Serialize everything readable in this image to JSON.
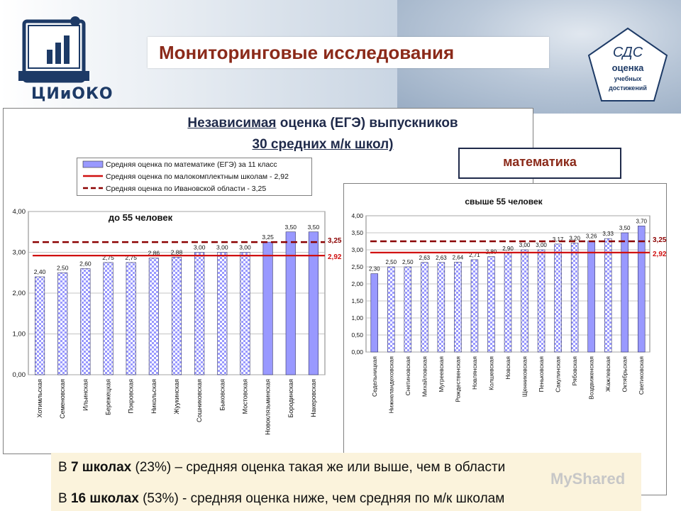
{
  "header": {
    "title": "Мониторинговые исследования",
    "logo_left_text": "ЦИиОКО",
    "logo_right": {
      "line1": "СДС",
      "line2": "оценка",
      "line3": "учебных",
      "line4": "достижений"
    }
  },
  "subtitle": {
    "line1_part1": "Независимая",
    "line1_part2": " оценка (ЕГЭ) выпускников",
    "line2": "30 средних м/к школ)"
  },
  "subject": "математика",
  "legend": {
    "item1": "Средняя оценка по математике (ЕГЭ) за 11 класс",
    "item2": "Средняя оценка по малокомплектным школам - 2,92",
    "item3": "Средняя оценка по Ивановской области - 3,25"
  },
  "bottom": {
    "line1_pre": "В ",
    "line1_bold": "7 школах",
    "line1_post": " (23%) – средняя оценка такая же или выше, чем в области",
    "line2_pre": "В ",
    "line2_bold": "16 школах",
    "line2_post": " (53%) - средняя оценка ниже, чем средняя по м/к школам"
  },
  "watermark": "MyShared",
  "colors": {
    "title": "#8b2a1a",
    "bar_fill": "#9999ff",
    "line_mk": "#d01010",
    "line_region": "#8b0000"
  },
  "chart_data": [
    {
      "type": "bar",
      "title": "до 55 человек",
      "categories": [
        "Хотимльская",
        "Семеновская",
        "Ильинская",
        "Бережецкая",
        "Покровская",
        "Никольская",
        "Жуукинская",
        "Сошниковская",
        "Быковская",
        "Мостовская",
        "Новоклязьминская",
        "Бородинская",
        "Накеровская"
      ],
      "values": [
        2.4,
        2.5,
        2.6,
        2.75,
        2.75,
        2.86,
        2.88,
        3.0,
        3.0,
        3.0,
        3.25,
        3.5,
        3.5
      ],
      "value_labels": [
        "2,40",
        "2,50",
        "2,60",
        "2,75",
        "2,75",
        "2,86",
        "2,88",
        "3,00",
        "3,00",
        "3,00",
        "3,25",
        "3,50",
        "3,50"
      ],
      "patterned": [
        true,
        true,
        true,
        true,
        true,
        true,
        true,
        true,
        true,
        true,
        false,
        false,
        false
      ],
      "ylim": [
        0,
        4
      ],
      "yticks": [
        "0,00",
        "1,00",
        "2,00",
        "3,00",
        "4,00"
      ],
      "ref_lines": [
        {
          "value": 3.25,
          "label": "3,25",
          "style": "dashed"
        },
        {
          "value": 2.92,
          "label": "2,92",
          "style": "solid"
        }
      ]
    },
    {
      "type": "bar",
      "title": "свыше 55 человек",
      "categories": [
        "Седельницкая",
        "Нижнеландеховская",
        "Снетиновская",
        "Михайловская",
        "Мугреевская",
        "Рождественская",
        "Новлянская",
        "Колшевская",
        "Новская",
        "Щенниковская",
        "Пеньковская",
        "Сакулинская",
        "Рябовская",
        "Воздвиженская",
        "Жажлевская",
        "Октябрьская",
        "Светиковская"
      ],
      "values": [
        2.3,
        2.5,
        2.5,
        2.63,
        2.63,
        2.64,
        2.71,
        2.8,
        2.9,
        3.0,
        3.0,
        3.17,
        3.2,
        3.26,
        3.33,
        3.5,
        3.7
      ],
      "value_labels": [
        "2,30",
        "2,50",
        "2,50",
        "2,63",
        "2,63",
        "2,64",
        "2,71",
        "2,80",
        "2,90",
        "3,00",
        "3,00",
        "3,17",
        "3,20",
        "3,26",
        "3,33",
        "3,50",
        "3,70"
      ],
      "patterned": [
        false,
        true,
        true,
        true,
        true,
        true,
        true,
        true,
        true,
        true,
        true,
        true,
        true,
        false,
        true,
        false,
        false
      ],
      "ylim": [
        0,
        4
      ],
      "yticks": [
        "0,00",
        "0,50",
        "1,00",
        "1,50",
        "2,00",
        "2,50",
        "3,00",
        "3,50",
        "4,00"
      ],
      "ref_lines": [
        {
          "value": 3.25,
          "label": "3,25",
          "style": "dashed"
        },
        {
          "value": 2.92,
          "label": "2,92",
          "style": "solid"
        }
      ]
    }
  ]
}
